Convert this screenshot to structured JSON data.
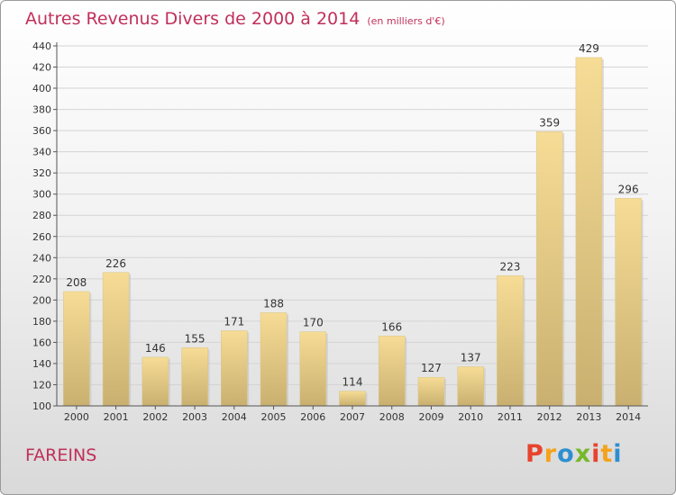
{
  "header": {
    "title": "Autres Revenus Divers de 2000 à 2014",
    "unit": "(en milliers d'€)"
  },
  "footer": {
    "place": "FAREINS",
    "brand": "Proxiti",
    "brand_colors": [
      "#e8432d",
      "#f5a21b",
      "#2e8fd0",
      "#76b82a",
      "#e8432d",
      "#f5a21b",
      "#2e8fd0"
    ]
  },
  "colors": {
    "accent": "#c0305a",
    "bar_light": "#f6dc95",
    "bar_dark": "#c9b070"
  },
  "chart_data": {
    "type": "bar",
    "categories": [
      "2000",
      "2001",
      "2002",
      "2003",
      "2004",
      "2005",
      "2006",
      "2007",
      "2008",
      "2009",
      "2010",
      "2011",
      "2012",
      "2013",
      "2014"
    ],
    "values": [
      208,
      226,
      146,
      155,
      171,
      188,
      170,
      114,
      166,
      127,
      137,
      223,
      359,
      429,
      296
    ],
    "title": "Autres Revenus Divers de 2000 à 2014",
    "xlabel": "",
    "ylabel": "",
    "ylim": [
      100,
      440
    ],
    "yticks": [
      100,
      120,
      140,
      160,
      180,
      200,
      220,
      240,
      260,
      280,
      300,
      320,
      340,
      360,
      380,
      400,
      420,
      440
    ],
    "grid": true
  }
}
